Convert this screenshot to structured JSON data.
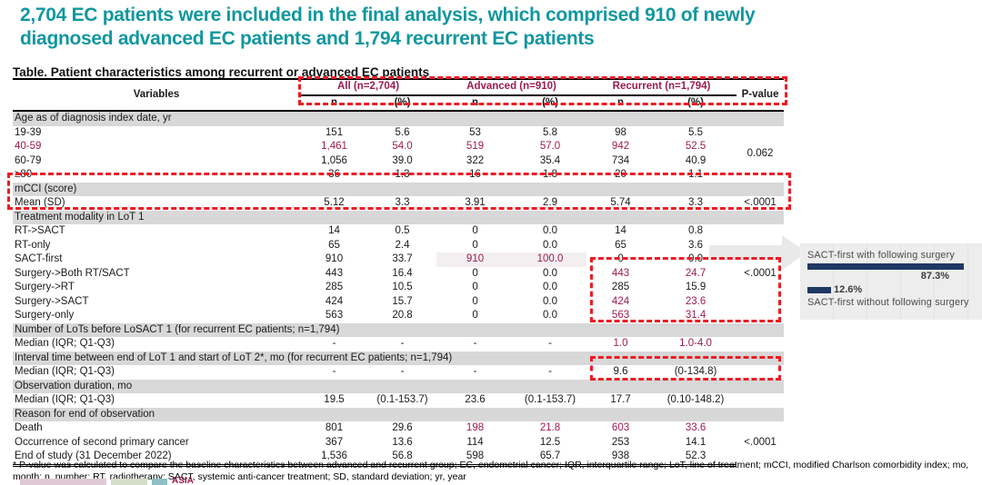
{
  "headline": {
    "lines": [
      "2,704 EC patients were included in the final analysis, which comprised 910 of newly",
      "diagnosed advanced EC patients and 1,794 recurrent EC patients"
    ]
  },
  "table": {
    "caption": "Table. Patient characteristics among recurrent or advanced EC patients",
    "header": {
      "variables": "Variables",
      "groups": [
        "All (n=2,704)",
        "Advanced (n=910)",
        "Recurrent (n=1,794)"
      ],
      "sub": [
        "n",
        "(%)"
      ],
      "pvalue": "P-value"
    },
    "rows": [
      {
        "type": "section",
        "label": "Age as of diagnosis index date, yr"
      },
      {
        "type": "data",
        "label": "19-39",
        "cells": [
          "151",
          "5.6",
          "53",
          "5.8",
          "98",
          "5.5"
        ],
        "p": "0.062",
        "pspan": 4
      },
      {
        "type": "data",
        "label": "40-59",
        "cells": [
          "1,461",
          "54.0",
          "519",
          "57.0",
          "942",
          "52.5"
        ],
        "em": [
          -1,
          0,
          1,
          2,
          3,
          4,
          5
        ],
        "pskip": true
      },
      {
        "type": "data",
        "label": "60-79",
        "cells": [
          "1,056",
          "39.0",
          "322",
          "35.4",
          "734",
          "40.9"
        ],
        "pskip": true
      },
      {
        "type": "data",
        "label": "≥80",
        "cells": [
          "36",
          "1.3",
          "16",
          "1.8",
          "20",
          "1.1"
        ],
        "pskip": true
      },
      {
        "type": "section",
        "label": "mCCI (score)"
      },
      {
        "type": "data",
        "label": "Mean (SD)",
        "cells": [
          "5.12",
          "3.3",
          "3.91",
          "2.9",
          "5.74",
          "3.3"
        ],
        "p": "<.0001",
        "pspan": 1
      },
      {
        "type": "section",
        "label": "Treatment modality in LoT 1"
      },
      {
        "type": "data",
        "label": "RT->SACT",
        "cells": [
          "14",
          "0.5",
          "0",
          "0.0",
          "14",
          "0.8"
        ],
        "p": "<.0001",
        "pspan": 7
      },
      {
        "type": "data",
        "label": "RT-only",
        "cells": [
          "65",
          "2.4",
          "0",
          "0.0",
          "65",
          "3.6"
        ],
        "pskip": true
      },
      {
        "type": "data",
        "label": "SACT-first",
        "cells": [
          "910",
          "33.7",
          "910",
          "100.0",
          "0",
          "0.0"
        ],
        "em": [
          2,
          3
        ],
        "bg": [
          2,
          3
        ],
        "pskip": true
      },
      {
        "type": "data",
        "label": "Surgery->Both RT/SACT",
        "cells": [
          "443",
          "16.4",
          "0",
          "0.0",
          "443",
          "24.7"
        ],
        "em": [
          4,
          5
        ],
        "pskip": true
      },
      {
        "type": "data",
        "label": "Surgery->RT",
        "cells": [
          "285",
          "10.5",
          "0",
          "0.0",
          "285",
          "15.9"
        ],
        "pskip": true
      },
      {
        "type": "data",
        "label": "Surgery->SACT",
        "cells": [
          "424",
          "15.7",
          "0",
          "0.0",
          "424",
          "23.6"
        ],
        "em": [
          4,
          5
        ],
        "pskip": true
      },
      {
        "type": "data",
        "label": "Surgery-only",
        "cells": [
          "563",
          "20.8",
          "0",
          "0.0",
          "563",
          "31.4"
        ],
        "em": [
          4,
          5
        ],
        "pskip": true
      },
      {
        "type": "section",
        "label": "Number of LoTs before LoSACT 1 (for recurrent EC patients; n=1,794)"
      },
      {
        "type": "data",
        "label": "Median (IQR; Q1-Q3)",
        "cells": [
          "-",
          "-",
          "-",
          "-",
          "1.0",
          "1.0-4.0"
        ],
        "em": [
          4,
          5
        ]
      },
      {
        "type": "section",
        "label": "Interval time between end of LoT 1 and start of LoT 2*, mo (for recurrent EC patients; n=1,794)"
      },
      {
        "type": "data",
        "label": "Median (IQR; Q1-Q3)",
        "cells": [
          "-",
          "-",
          "-",
          "-",
          "9.6",
          "(0-134.8)"
        ]
      },
      {
        "type": "section",
        "label": "Observation duration, mo"
      },
      {
        "type": "data",
        "label": "Median (IQR; Q1-Q3)",
        "cells": [
          "19.5",
          "(0.1-153.7)",
          "23.6",
          "(0.1-153.7)",
          "17.7",
          "(0.10-148.2)"
        ]
      },
      {
        "type": "section",
        "label": "Reason for end of observation"
      },
      {
        "type": "data",
        "label": "Death",
        "cells": [
          "801",
          "29.6",
          "198",
          "21.8",
          "603",
          "33.6"
        ],
        "em": [
          2,
          3,
          4,
          5
        ],
        "p": "<.0001",
        "pspan": 3
      },
      {
        "type": "data",
        "label": "Occurrence of second primary cancer",
        "cells": [
          "367",
          "13.6",
          "114",
          "12.5",
          "253",
          "14.1"
        ],
        "pskip": true
      },
      {
        "type": "data",
        "label": "End of study (31 December 2022)",
        "cells": [
          "1,536",
          "56.8",
          "598",
          "65.7",
          "938",
          "52.3"
        ],
        "pskip": true
      }
    ]
  },
  "annotation": {
    "with_label": "SACT-first with following surgery",
    "with_value": "87.3%",
    "without_label": "SACT-first without following surgery",
    "without_value": "12.6%"
  },
  "chart_data": {
    "type": "bar",
    "categories": [
      "SACT-first with following surgery",
      "SACT-first without following surgery"
    ],
    "values": [
      87.3,
      12.6
    ],
    "unit": "%"
  },
  "footnote": "* P-value was calculated to compare the baseline characteristics between advanced and recurrent group; EC, endometrial cancer; IQR, interquartile range; LoT, line of treatment; mCCI, modified Charlson comorbidity index; mo, month; n, number; RT, radiotherapy; SACT, systemic anti-cancer treatment; SD, standard deviation; yr, year",
  "logo": {
    "text": "ASIA"
  },
  "colors": {
    "headline_teal": "#12979E",
    "emphasis_maroon": "#9C1B4E",
    "dashed_red": "#EC1C24",
    "section_gray": "#D8D8D8",
    "bar_navy": "#1F3864"
  }
}
